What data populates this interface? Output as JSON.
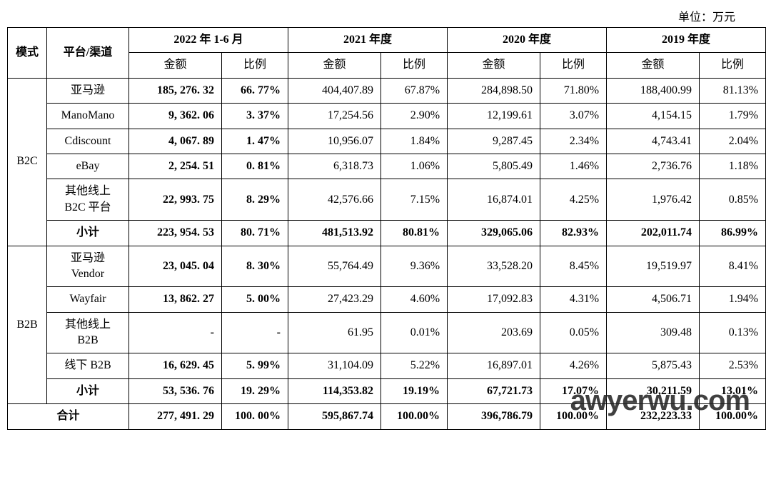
{
  "unit_label": "单位：万元",
  "watermark": "awyerwu.com",
  "columns": {
    "mode": "模式",
    "channel": "平台/渠道",
    "periods": [
      "2022 年 1-6 月",
      "2021 年度",
      "2020 年度",
      "2019 年度"
    ],
    "sub": {
      "amount": "金额",
      "ratio": "比例"
    }
  },
  "groups": [
    {
      "mode": "B2C",
      "rows": [
        {
          "channel": "亚马逊",
          "cells": [
            "185, 276. 32",
            "66. 77%",
            "404,407.89",
            "67.87%",
            "284,898.50",
            "71.80%",
            "188,400.99",
            "81.13%"
          ],
          "bold22": true
        },
        {
          "channel": "ManoMano",
          "cells": [
            "9, 362. 06",
            "3. 37%",
            "17,254.56",
            "2.90%",
            "12,199.61",
            "3.07%",
            "4,154.15",
            "1.79%"
          ],
          "bold22": true
        },
        {
          "channel": "Cdiscount",
          "cells": [
            "4, 067. 89",
            "1. 47%",
            "10,956.07",
            "1.84%",
            "9,287.45",
            "2.34%",
            "4,743.41",
            "2.04%"
          ],
          "bold22": true
        },
        {
          "channel": "eBay",
          "cells": [
            "2, 254. 51",
            "0. 81%",
            "6,318.73",
            "1.06%",
            "5,805.49",
            "1.46%",
            "2,736.76",
            "1.18%"
          ],
          "bold22": true
        },
        {
          "channel": "其他线上\nB2C 平台",
          "cells": [
            "22, 993. 75",
            "8. 29%",
            "42,576.66",
            "7.15%",
            "16,874.01",
            "4.25%",
            "1,976.42",
            "0.85%"
          ],
          "bold22": true
        },
        {
          "channel": "小计",
          "cells": [
            "223, 954. 53",
            "80. 71%",
            "481,513.92",
            "80.81%",
            "329,065.06",
            "82.93%",
            "202,011.74",
            "86.99%"
          ],
          "boldAll": true
        }
      ]
    },
    {
      "mode": "B2B",
      "rows": [
        {
          "channel": "亚马逊\nVendor",
          "cells": [
            "23, 045. 04",
            "8. 30%",
            "55,764.49",
            "9.36%",
            "33,528.20",
            "8.45%",
            "19,519.97",
            "8.41%"
          ],
          "bold22": true
        },
        {
          "channel": "Wayfair",
          "cells": [
            "13, 862. 27",
            "5. 00%",
            "27,423.29",
            "4.60%",
            "17,092.83",
            "4.31%",
            "4,506.71",
            "1.94%"
          ],
          "bold22": true
        },
        {
          "channel": "其他线上\nB2B",
          "cells": [
            "-",
            "-",
            "61.95",
            "0.01%",
            "203.69",
            "0.05%",
            "309.48",
            "0.13%"
          ],
          "bold22": true
        },
        {
          "channel": "线下 B2B",
          "cells": [
            "16, 629. 45",
            "5. 99%",
            "31,104.09",
            "5.22%",
            "16,897.01",
            "4.26%",
            "5,875.43",
            "2.53%"
          ],
          "bold22": true
        },
        {
          "channel": "小计",
          "cells": [
            "53, 536. 76",
            "19. 29%",
            "114,353.82",
            "19.19%",
            "67,721.73",
            "17.07%",
            "30,211.59",
            "13.01%"
          ],
          "boldAll": true
        }
      ]
    }
  ],
  "total": {
    "label": "合计",
    "cells": [
      "277, 491. 29",
      "100. 00%",
      "595,867.74",
      "100.00%",
      "396,786.79",
      "100.00%",
      "232,223.33",
      "100.00%"
    ]
  },
  "col_widths": {
    "mode": 55,
    "channel": 115,
    "amount": 130,
    "ratio": 93
  }
}
